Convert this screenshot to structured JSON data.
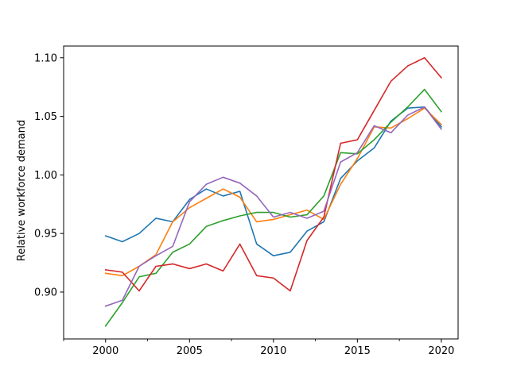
{
  "chart_data": {
    "type": "line",
    "title": "",
    "xlabel": "",
    "ylabel": "Relative workforce demand",
    "xlim": [
      1997.5,
      2021
    ],
    "ylim": [
      0.86,
      1.11
    ],
    "x_major_ticks": [
      2000,
      2005,
      2010,
      2015,
      2020
    ],
    "x_minor_ticks": [
      1997.5,
      2002.5,
      2007.5,
      2012.5,
      2017.5
    ],
    "y_ticks": [
      0.9,
      0.95,
      1.0,
      1.05,
      1.1
    ],
    "x_tick_labels": [
      "2000",
      "2005",
      "2010",
      "2015",
      "2020"
    ],
    "y_tick_labels": [
      "0.90",
      "0.95",
      "1.00",
      "1.05",
      "1.10"
    ],
    "grid": false,
    "x": [
      2000,
      2001,
      2002,
      2003,
      2004,
      2005,
      2006,
      2007,
      2008,
      2009,
      2010,
      2011,
      2012,
      2013,
      2014,
      2015,
      2016,
      2017,
      2018,
      2019,
      2020
    ],
    "series": [
      {
        "color": "#1f77b4",
        "values": [
          0.948,
          0.943,
          0.95,
          0.963,
          0.96,
          0.979,
          0.988,
          0.982,
          0.986,
          0.941,
          0.931,
          0.934,
          0.952,
          0.96,
          0.997,
          1.012,
          1.023,
          1.046,
          1.057,
          1.058,
          1.041
        ]
      },
      {
        "color": "#ff7f0e",
        "values": [
          0.916,
          0.914,
          0.922,
          0.932,
          0.96,
          0.972,
          0.98,
          0.988,
          0.981,
          0.96,
          0.962,
          0.966,
          0.97,
          0.962,
          0.992,
          1.014,
          1.041,
          1.04,
          1.048,
          1.057,
          1.043
        ]
      },
      {
        "color": "#2ca02c",
        "values": [
          0.871,
          0.891,
          0.913,
          0.916,
          0.934,
          0.941,
          0.956,
          0.961,
          0.965,
          0.968,
          0.968,
          0.964,
          0.966,
          0.982,
          1.019,
          1.018,
          1.03,
          1.045,
          1.058,
          1.073,
          1.054
        ]
      },
      {
        "color": "#d62728",
        "values": [
          0.919,
          0.917,
          0.901,
          0.922,
          0.924,
          0.92,
          0.924,
          0.918,
          0.941,
          0.914,
          0.912,
          0.901,
          0.944,
          0.964,
          1.027,
          1.03,
          1.055,
          1.08,
          1.093,
          1.1,
          1.083
        ]
      },
      {
        "color": "#9467bd",
        "values": [
          0.888,
          0.893,
          0.922,
          0.931,
          0.939,
          0.977,
          0.992,
          0.998,
          0.993,
          0.982,
          0.964,
          0.968,
          0.963,
          0.969,
          1.011,
          1.019,
          1.042,
          1.036,
          1.051,
          1.058,
          1.039
        ]
      }
    ]
  }
}
